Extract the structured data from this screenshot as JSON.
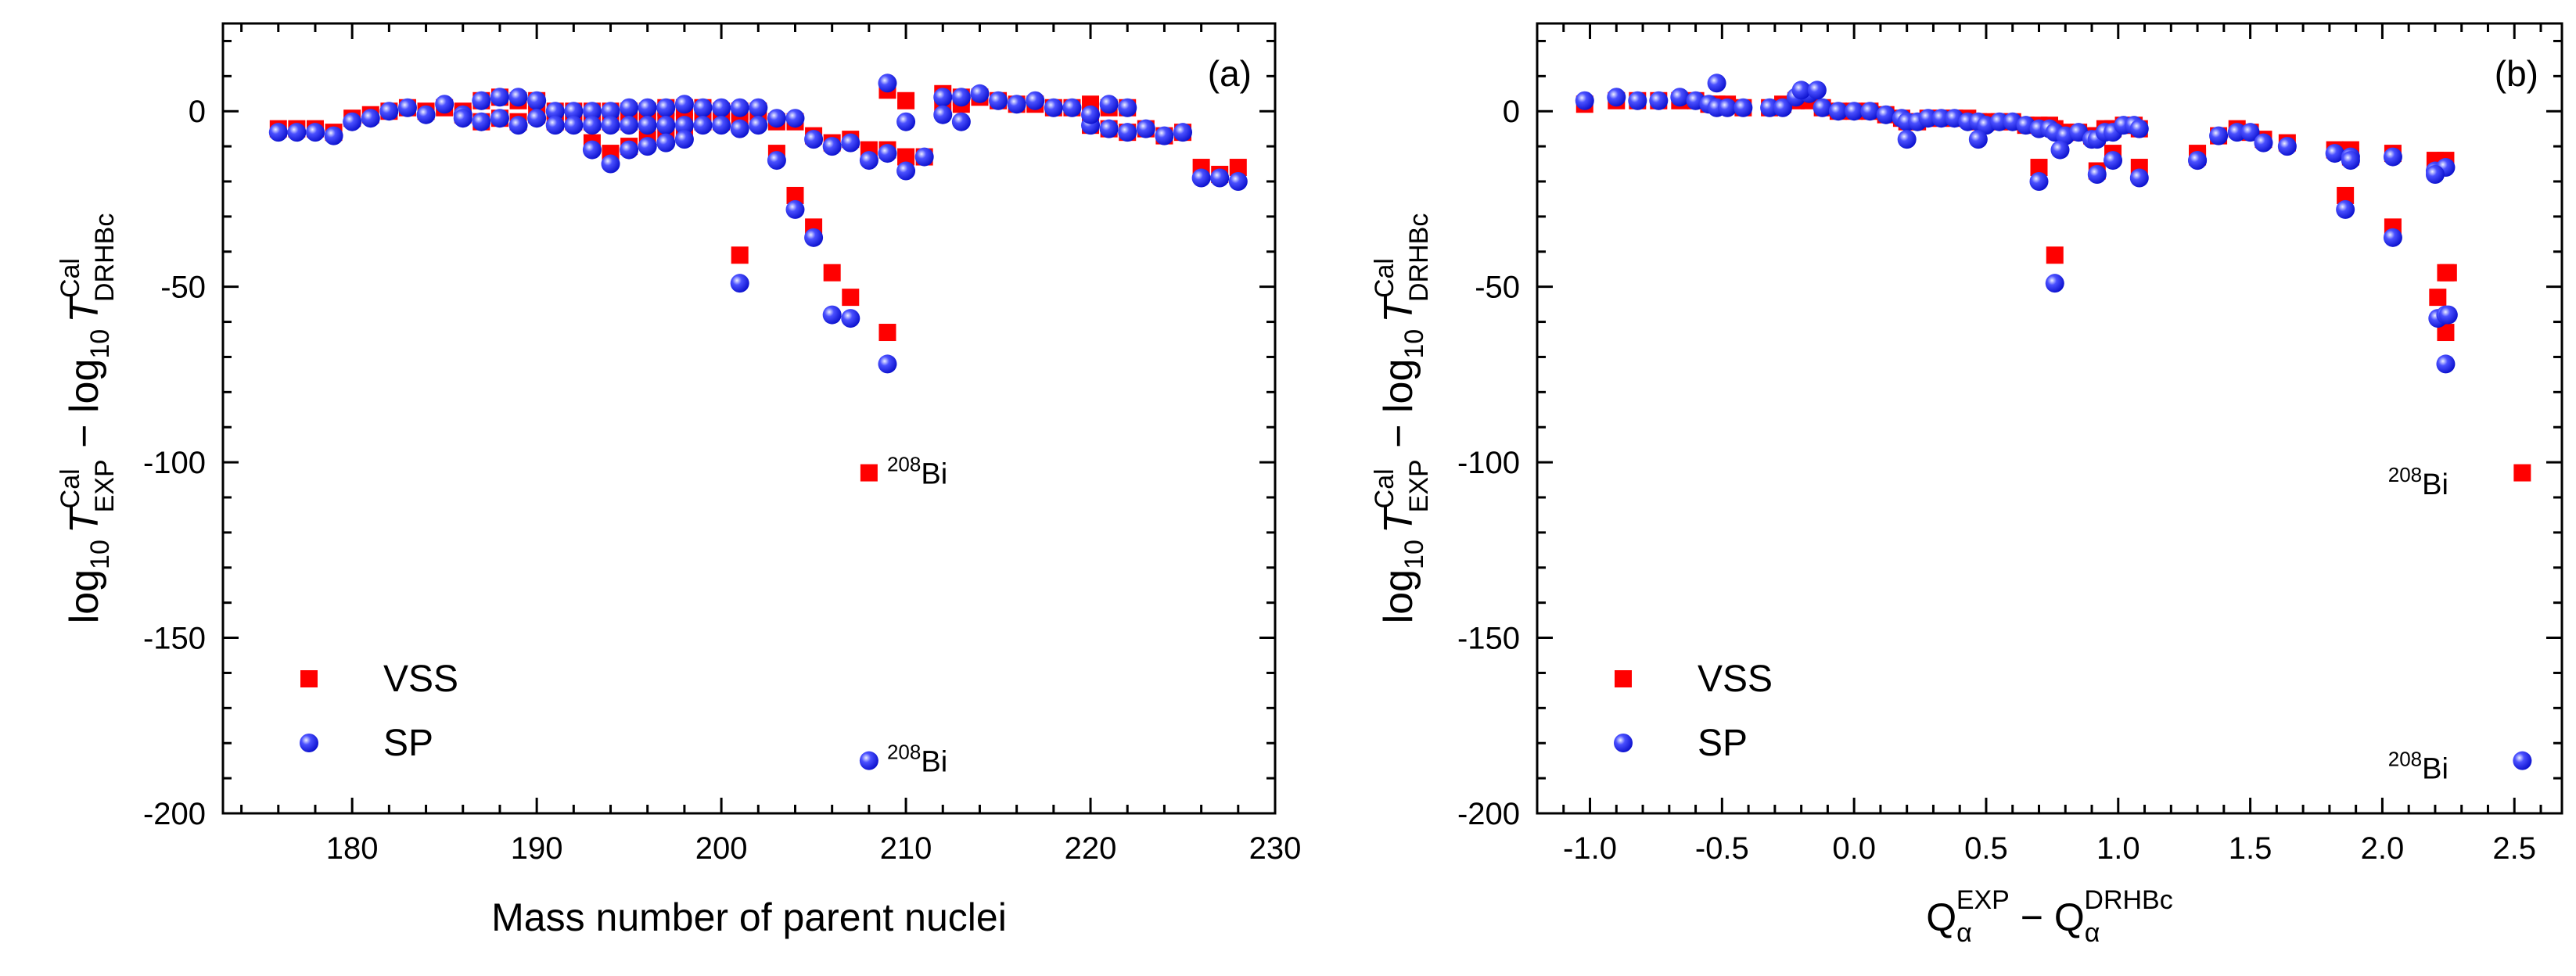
{
  "figure": {
    "panels": [
      "a",
      "b"
    ]
  },
  "colors": {
    "vss": "#ff0000",
    "sp_fill": "#1f24ff",
    "sp_highlight": "#e8ecff",
    "axis": "#000000"
  },
  "chart_data": [
    {
      "type": "scatter",
      "panel_label": "(a)",
      "xlabel": "Mass number of parent nuclei",
      "ylabel": {
        "lead": "log",
        "sub1": "10",
        "T": "T",
        "sup1": "Cal",
        "sub_exp": "EXP",
        "minus": " − log",
        "sub2": "10",
        "sup2": "Cal",
        "sub_drhbc": "DRHBc"
      },
      "xlim": [
        173,
        230
      ],
      "ylim": [
        -200,
        25
      ],
      "x_major_ticks": [
        180,
        190,
        200,
        210,
        220,
        230
      ],
      "x_minor_step": 2,
      "y_major_ticks": [
        0,
        -50,
        -100,
        -150,
        -200
      ],
      "y_minor_step": 10,
      "legend": [
        "VSS",
        "SP"
      ],
      "annotations": [
        {
          "text_sup": "208",
          "text": "Bi",
          "x": 208.3,
          "y": -103,
          "series": "VSS"
        },
        {
          "text_sup": "208",
          "text": "Bi",
          "x": 208.3,
          "y": -185,
          "series": "SP"
        }
      ],
      "series": [
        {
          "name": "VSS",
          "marker": "square",
          "x": [
            176,
            177,
            178,
            179,
            180,
            181,
            182,
            183,
            184,
            185,
            186,
            187,
            188,
            189,
            190,
            191,
            192,
            193,
            194,
            195,
            196,
            197,
            198,
            199,
            200,
            201,
            202,
            203,
            204,
            205,
            206,
            207,
            208,
            209,
            210,
            211,
            212,
            213,
            214,
            215,
            216,
            217,
            218,
            219,
            220,
            221,
            222,
            223,
            224,
            225,
            226,
            227,
            228,
            186,
            187,
            188,
            189,
            190,
            191,
            192,
            193,
            194,
            195,
            196,
            197,
            198,
            199,
            200,
            201,
            202,
            193,
            194,
            195,
            196,
            197,
            198,
            201,
            203,
            204,
            205,
            206,
            207,
            208,
            209,
            209,
            210,
            212,
            213,
            220,
            221,
            222
          ],
          "y": [
            -5,
            -5,
            -5,
            -6,
            -2,
            -1,
            0,
            1,
            0,
            1,
            0,
            3,
            4,
            3,
            3,
            0,
            0,
            0,
            0,
            0,
            0,
            1,
            1,
            1,
            0,
            0,
            0,
            -3,
            -3,
            -7,
            -9,
            -8,
            -11,
            -11,
            -13,
            -13,
            5,
            4,
            4,
            3,
            2,
            2,
            1,
            1,
            -4,
            -5,
            -6,
            -5,
            -7,
            -6,
            -16,
            -18,
            -16,
            -1,
            -3,
            -2,
            -3,
            -1,
            -3,
            -3,
            -3,
            -3,
            -3,
            -3,
            -3,
            -3,
            -3,
            -3,
            -3,
            -2,
            -9,
            -12,
            -10,
            -8,
            -7,
            -6,
            -41,
            -12,
            -24,
            -33,
            -46,
            -53,
            -103,
            -63,
            6,
            3,
            2,
            2,
            2,
            1,
            1
          ]
        },
        {
          "name": "SP",
          "marker": "sphere",
          "x": [
            176,
            177,
            178,
            179,
            180,
            181,
            182,
            183,
            184,
            185,
            186,
            187,
            188,
            189,
            190,
            191,
            192,
            193,
            194,
            195,
            196,
            197,
            198,
            199,
            200,
            201,
            202,
            203,
            204,
            205,
            206,
            207,
            208,
            209,
            210,
            211,
            212,
            213,
            214,
            215,
            216,
            217,
            218,
            219,
            220,
            221,
            222,
            223,
            224,
            225,
            226,
            227,
            228,
            186,
            187,
            188,
            189,
            190,
            191,
            192,
            193,
            194,
            195,
            196,
            197,
            198,
            199,
            200,
            201,
            202,
            193,
            194,
            195,
            196,
            197,
            198,
            201,
            203,
            204,
            205,
            206,
            207,
            208,
            209,
            209,
            210,
            212,
            213,
            220,
            221,
            222
          ],
          "y": [
            -6,
            -6,
            -6,
            -7,
            -3,
            -2,
            0,
            1,
            -1,
            2,
            -1,
            3,
            4,
            4,
            3,
            0,
            0,
            0,
            0,
            1,
            1,
            1,
            2,
            1,
            1,
            1,
            1,
            -2,
            -2,
            -8,
            -10,
            -9,
            -14,
            -12,
            -17,
            -13,
            4,
            4,
            5,
            3,
            2,
            3,
            1,
            1,
            -4,
            -5,
            -6,
            -5,
            -7,
            -6,
            -19,
            -19,
            -20,
            -2,
            -3,
            -2,
            -4,
            -2,
            -4,
            -4,
            -4,
            -4,
            -4,
            -4,
            -4,
            -4,
            -4,
            -4,
            -5,
            -4,
            -11,
            -15,
            -11,
            -10,
            -9,
            -8,
            -49,
            -14,
            -28,
            -36,
            -58,
            -59,
            -185,
            -72,
            8,
            -3,
            -1,
            -3,
            -1,
            2,
            1
          ]
        }
      ]
    },
    {
      "type": "scatter",
      "panel_label": "(b)",
      "xlabel": {
        "Q1": "Q",
        "sub1": "α",
        "sup1": "EXP",
        "minus": " − Q",
        "sub2": "α",
        "sup2": "DRHBc"
      },
      "ylabel": {
        "lead": "log",
        "sub1": "10",
        "T": "T",
        "sup1": "Cal",
        "sub_exp": "EXP",
        "minus": " − log",
        "sub2": "10",
        "sup2": "Cal",
        "sub_drhbc": "DRHBc"
      },
      "xlim": [
        -1.2,
        2.68
      ],
      "ylim": [
        -200,
        25
      ],
      "x_major_ticks": [
        -1.0,
        -0.5,
        0.0,
        0.5,
        1.0,
        1.5,
        2.0,
        2.5
      ],
      "x_tick_labels": [
        "-1.0",
        "-0.5",
        "0.0",
        "0.5",
        "1.0",
        "1.5",
        "2.0",
        "2.5"
      ],
      "x_minor_step": 0.1,
      "y_major_ticks": [
        0,
        -50,
        -100,
        -150,
        -200
      ],
      "y_minor_step": 10,
      "legend": [
        "VSS",
        "SP"
      ],
      "annotations": [
        {
          "text_sup": "208",
          "text": "Bi",
          "x": 2.28,
          "y": -106,
          "series": "VSS"
        },
        {
          "text_sup": "208",
          "text": "Bi",
          "x": 2.28,
          "y": -187,
          "series": "SP"
        }
      ],
      "series": [
        {
          "name": "VSS",
          "marker": "square",
          "x": [
            -1.02,
            -0.9,
            -0.82,
            -0.74,
            -0.66,
            -0.6,
            -0.55,
            -0.52,
            -0.48,
            -0.42,
            -0.32,
            -0.27,
            -0.22,
            -0.17,
            -0.12,
            -0.06,
            0.0,
            0.06,
            0.12,
            0.18,
            0.2,
            0.24,
            0.28,
            0.33,
            0.38,
            0.43,
            0.47,
            0.5,
            0.55,
            0.6,
            0.65,
            0.7,
            0.74,
            0.76,
            0.8,
            0.85,
            0.9,
            0.92,
            0.95,
            0.98,
            1.02,
            1.06,
            1.08,
            1.3,
            1.38,
            1.45,
            1.5,
            1.55,
            1.64,
            1.82,
            1.88,
            2.04,
            2.2,
            2.24,
            0.7,
            0.76,
            0.92,
            0.98,
            1.08,
            1.3,
            1.86,
            1.88,
            2.04,
            2.2,
            2.21,
            2.24,
            2.24,
            2.25,
            2.53
          ],
          "y": [
            2,
            3,
            3,
            3,
            3,
            3,
            2,
            2,
            2,
            1,
            1,
            2,
            3,
            3,
            1,
            0,
            0,
            0,
            -1,
            -2,
            -3,
            -3,
            -2,
            -2,
            -2,
            -2,
            -3,
            -3,
            -3,
            -3,
            -4,
            -4,
            -4,
            -5,
            -6,
            -6,
            -7,
            -7,
            -5,
            -5,
            -4,
            -4,
            -5,
            -12,
            -7,
            -5,
            -6,
            -8,
            -9,
            -11,
            -11,
            -12,
            -14,
            -14,
            -16,
            -41,
            -17,
            -12,
            -16,
            -13,
            -24,
            -13,
            -33,
            -15,
            -53,
            -63,
            -46,
            -46,
            -103
          ]
        },
        {
          "name": "SP",
          "marker": "sphere",
          "x": [
            -1.02,
            -0.9,
            -0.82,
            -0.74,
            -0.66,
            -0.6,
            -0.55,
            -0.52,
            -0.48,
            -0.42,
            -0.32,
            -0.27,
            -0.22,
            -0.17,
            -0.12,
            -0.06,
            0.0,
            0.06,
            0.12,
            0.18,
            0.2,
            0.24,
            0.28,
            0.33,
            0.38,
            0.43,
            0.47,
            0.5,
            0.55,
            0.6,
            0.65,
            0.7,
            0.74,
            0.76,
            0.8,
            0.85,
            0.9,
            0.92,
            0.95,
            0.98,
            1.02,
            1.06,
            1.08,
            1.3,
            1.38,
            1.45,
            1.5,
            1.55,
            1.64,
            1.82,
            1.88,
            2.04,
            2.2,
            2.24,
            0.7,
            0.76,
            0.92,
            0.98,
            1.08,
            1.3,
            1.86,
            1.88,
            2.04,
            2.2,
            2.21,
            2.24,
            2.24,
            2.25,
            2.53,
            -0.52,
            -0.2,
            -0.14,
            0.2,
            0.47,
            0.78
          ],
          "y": [
            3,
            4,
            3,
            3,
            4,
            3,
            2,
            1,
            1,
            1,
            1,
            1,
            4,
            5,
            1,
            0,
            0,
            0,
            -1,
            -2,
            -3,
            -3,
            -2,
            -2,
            -2,
            -3,
            -3,
            -4,
            -3,
            -3,
            -4,
            -5,
            -5,
            -6,
            -7,
            -6,
            -8,
            -8,
            -6,
            -6,
            -4,
            -4,
            -5,
            -14,
            -7,
            -6,
            -6,
            -9,
            -10,
            -12,
            -13,
            -13,
            -17,
            -16,
            -20,
            -49,
            -18,
            -14,
            -19,
            -14,
            -28,
            -14,
            -36,
            -18,
            -59,
            -58,
            -72,
            -58,
            -185,
            8,
            6,
            6,
            -8,
            -8,
            -11
          ]
        }
      ]
    }
  ]
}
